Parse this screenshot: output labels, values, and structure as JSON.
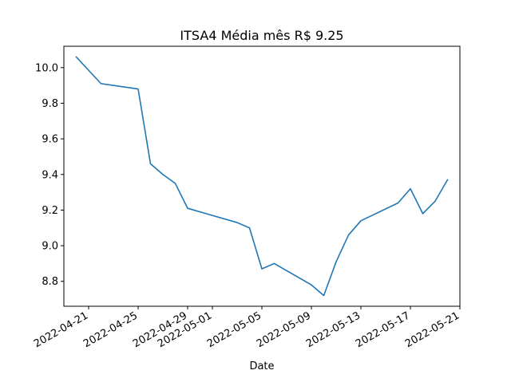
{
  "chart_data": {
    "type": "line",
    "title": "ITSA4 Média mês R$ 9.25",
    "xlabel": "Date",
    "ylabel": "",
    "x_is_date": true,
    "xlim": [
      "2022-04-19",
      "2022-05-21"
    ],
    "ylim": [
      8.66,
      10.12
    ],
    "y_ticks": [
      8.8,
      9.0,
      9.2,
      9.4,
      9.6,
      9.8,
      10.0
    ],
    "y_tick_labels": [
      "8.8",
      "9.0",
      "9.2",
      "9.4",
      "9.6",
      "9.8",
      "10.0"
    ],
    "x_ticks": [
      "2022-04-21",
      "2022-04-25",
      "2022-04-29",
      "2022-05-01",
      "2022-05-05",
      "2022-05-09",
      "2022-05-13",
      "2022-05-17",
      "2022-05-21"
    ],
    "x_tick_labels": [
      "2022-04-21",
      "2022-04-25",
      "2022-04-29",
      "2022-05-01",
      "2022-05-05",
      "2022-05-09",
      "2022-05-13",
      "2022-05-17",
      "2022-05-21"
    ],
    "grid": false,
    "legend": "none",
    "series": [
      {
        "color": "#1f77b4",
        "x": [
          "2022-04-20",
          "2022-04-22",
          "2022-04-25",
          "2022-04-26",
          "2022-04-27",
          "2022-04-28",
          "2022-04-29",
          "2022-05-03",
          "2022-05-04",
          "2022-05-05",
          "2022-05-06",
          "2022-05-09",
          "2022-05-10",
          "2022-05-11",
          "2022-05-12",
          "2022-05-13",
          "2022-05-16",
          "2022-05-17",
          "2022-05-18",
          "2022-05-19",
          "2022-05-20"
        ],
        "values": [
          10.06,
          9.91,
          9.88,
          9.46,
          9.4,
          9.35,
          9.21,
          9.13,
          9.1,
          8.87,
          8.9,
          8.78,
          8.72,
          8.91,
          9.06,
          9.14,
          9.24,
          9.32,
          9.18,
          9.25,
          9.37
        ]
      }
    ]
  }
}
